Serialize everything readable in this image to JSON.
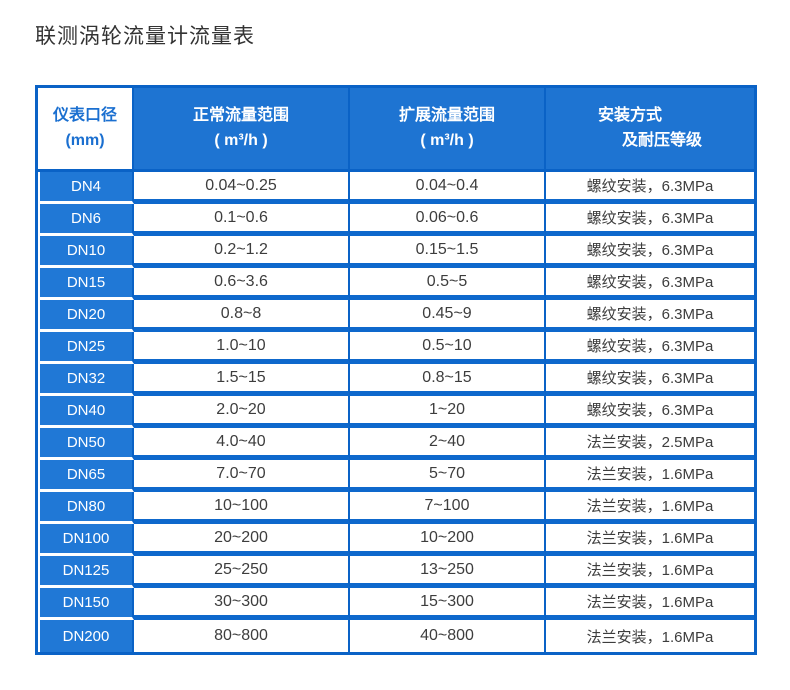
{
  "page": {
    "title": "联测涡轮流量计流量表"
  },
  "colors": {
    "header_blue": "#1e74d2",
    "cell_blue": "#2078d6",
    "border_blue": "#0a62c6",
    "band_blue": "#0e68cc",
    "header_col1_text": "#1a6fd0",
    "data_text": "#3d3d3d",
    "title_text": "#333333"
  },
  "table": {
    "header": {
      "col1": {
        "line1": "仪表口径",
        "line2": "(mm)"
      },
      "col2": {
        "line1": "正常流量范围",
        "line2": "( m³/h )"
      },
      "col3": {
        "line1": "扩展流量范围",
        "line2": "( m³/h )"
      },
      "col4": {
        "line1": "安装方式",
        "line2": "及耐压等级"
      }
    },
    "rows": [
      {
        "dn": "DN4",
        "normal": "0.04~0.25",
        "extended": "0.04~0.4",
        "install": "螺纹安装，6.3MPa"
      },
      {
        "dn": "DN6",
        "normal": "0.1~0.6",
        "extended": "0.06~0.6",
        "install": "螺纹安装，6.3MPa"
      },
      {
        "dn": "DN10",
        "normal": "0.2~1.2",
        "extended": "0.15~1.5",
        "install": "螺纹安装，6.3MPa"
      },
      {
        "dn": "DN15",
        "normal": "0.6~3.6",
        "extended": "0.5~5",
        "install": "螺纹安装，6.3MPa"
      },
      {
        "dn": "DN20",
        "normal": "0.8~8",
        "extended": "0.45~9",
        "install": "螺纹安装，6.3MPa"
      },
      {
        "dn": "DN25",
        "normal": "1.0~10",
        "extended": "0.5~10",
        "install": "螺纹安装，6.3MPa"
      },
      {
        "dn": "DN32",
        "normal": "1.5~15",
        "extended": "0.8~15",
        "install": "螺纹安装，6.3MPa"
      },
      {
        "dn": "DN40",
        "normal": "2.0~20",
        "extended": "1~20",
        "install": "螺纹安装，6.3MPa"
      },
      {
        "dn": "DN50",
        "normal": "4.0~40",
        "extended": "2~40",
        "install": "法兰安装，2.5MPa"
      },
      {
        "dn": "DN65",
        "normal": "7.0~70",
        "extended": "5~70",
        "install": "法兰安装，1.6MPa"
      },
      {
        "dn": "DN80",
        "normal": "10~100",
        "extended": "7~100",
        "install": "法兰安装，1.6MPa"
      },
      {
        "dn": "DN100",
        "normal": "20~200",
        "extended": "10~200",
        "install": "法兰安装，1.6MPa"
      },
      {
        "dn": "DN125",
        "normal": "25~250",
        "extended": "13~250",
        "install": "法兰安装，1.6MPa"
      },
      {
        "dn": "DN150",
        "normal": "30~300",
        "extended": "15~300",
        "install": "法兰安装，1.6MPa"
      },
      {
        "dn": "DN200",
        "normal": "80~800",
        "extended": "40~800",
        "install": "法兰安装，1.6MPa"
      }
    ]
  }
}
